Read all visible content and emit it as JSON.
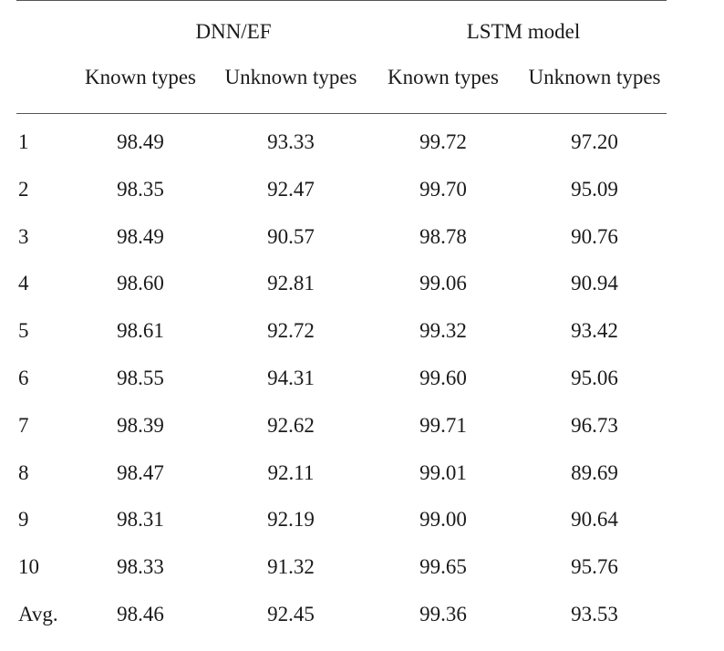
{
  "table": {
    "group_headers": [
      "DNN/EF",
      "LSTM model"
    ],
    "sub_headers": [
      "Known types",
      "Unknown types",
      "Known types",
      "Unknown types"
    ],
    "rows": [
      {
        "label": "1",
        "values": [
          "98.49",
          "93.33",
          "99.72",
          "97.20"
        ]
      },
      {
        "label": "2",
        "values": [
          "98.35",
          "92.47",
          "99.70",
          "95.09"
        ]
      },
      {
        "label": "3",
        "values": [
          "98.49",
          "90.57",
          "98.78",
          "90.76"
        ]
      },
      {
        "label": "4",
        "values": [
          "98.60",
          "92.81",
          "99.06",
          "90.94"
        ]
      },
      {
        "label": "5",
        "values": [
          "98.61",
          "92.72",
          "99.32",
          "93.42"
        ]
      },
      {
        "label": "6",
        "values": [
          "98.55",
          "94.31",
          "99.60",
          "95.06"
        ]
      },
      {
        "label": "7",
        "values": [
          "98.39",
          "92.62",
          "99.71",
          "96.73"
        ]
      },
      {
        "label": "8",
        "values": [
          "98.47",
          "92.11",
          "99.01",
          "89.69"
        ]
      },
      {
        "label": "9",
        "values": [
          "98.31",
          "92.19",
          "99.00",
          "90.64"
        ]
      },
      {
        "label": "10",
        "values": [
          "98.33",
          "91.32",
          "99.65",
          "95.76"
        ]
      },
      {
        "label": "Avg.",
        "values": [
          "98.46",
          "92.45",
          "99.36",
          "93.53"
        ]
      }
    ]
  }
}
